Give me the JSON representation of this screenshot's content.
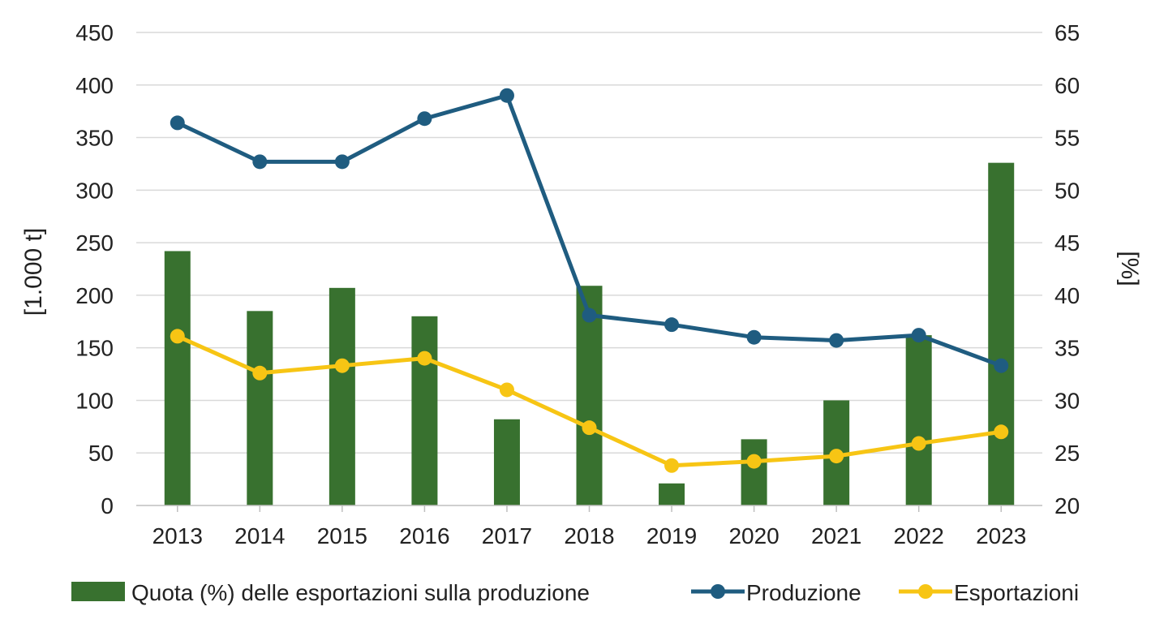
{
  "chart_data": {
    "type": "bar+line",
    "categories": [
      "2013",
      "2014",
      "2015",
      "2016",
      "2017",
      "2018",
      "2019",
      "2020",
      "2021",
      "2022",
      "2023"
    ],
    "bar_series": {
      "name": "Quota (%) delle esportazioni sulla produzione",
      "axis": "right",
      "values": [
        44.2,
        38.5,
        40.7,
        38.0,
        28.2,
        40.9,
        22.1,
        26.3,
        30.0,
        36.2,
        52.6
      ],
      "color": "#38712F"
    },
    "line_series": [
      {
        "name": "Produzione",
        "axis": "left",
        "values": [
          364,
          327,
          327,
          368,
          390,
          181,
          172,
          160,
          157,
          162,
          133
        ],
        "color": "#1F5C80"
      },
      {
        "name": "Esportazioni",
        "axis": "left",
        "values": [
          161,
          126,
          133,
          140,
          110,
          74,
          38,
          42,
          47,
          59,
          70
        ],
        "color": "#F7C514"
      }
    ],
    "y_left": {
      "label": "[1.000 t]",
      "min": 0,
      "max": 450,
      "ticks": [
        "0",
        "50",
        "100",
        "150",
        "200",
        "250",
        "300",
        "350",
        "400",
        "450"
      ]
    },
    "y_right": {
      "label": "[%]",
      "min": 20,
      "max": 65,
      "ticks": [
        "20",
        "25",
        "30",
        "35",
        "40",
        "45",
        "50",
        "55",
        "60",
        "65"
      ]
    },
    "grid": true,
    "legend_position": "bottom"
  }
}
